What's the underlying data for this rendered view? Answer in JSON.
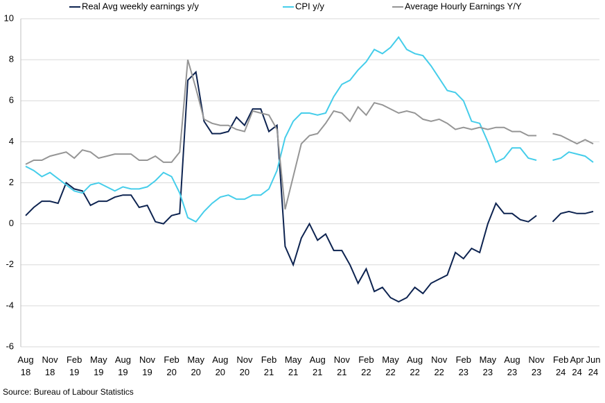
{
  "chart_data": {
    "type": "line",
    "categories": [
      "Aug 18",
      null,
      null,
      "Nov 18",
      null,
      null,
      "Feb 19",
      null,
      null,
      "May 19",
      null,
      null,
      "Aug 19",
      null,
      null,
      "Nov 19",
      null,
      null,
      "Feb 20",
      null,
      null,
      "May 20",
      null,
      null,
      "Aug 20",
      null,
      null,
      "Nov 20",
      null,
      null,
      "Feb 21",
      null,
      null,
      "May 21",
      null,
      null,
      "Aug 21",
      null,
      null,
      "Nov 21",
      null,
      null,
      "Feb 22",
      null,
      null,
      "May 22",
      null,
      null,
      "Aug 22",
      null,
      null,
      "Nov 22",
      null,
      null,
      "Feb 23",
      null,
      null,
      "May 23",
      null,
      null,
      "Aug 23",
      null,
      null,
      "Nov 23",
      null,
      null,
      "Feb 24",
      null,
      "Apr 24",
      null,
      "Jun 24"
    ],
    "series": [
      {
        "name": "Real Avg weekly earnings y/y",
        "color": "#0d2350",
        "values": [
          0.4,
          0.8,
          1.1,
          1.1,
          1.0,
          2.0,
          1.7,
          1.6,
          0.9,
          1.1,
          1.1,
          1.3,
          1.4,
          1.4,
          0.8,
          0.9,
          0.1,
          0.0,
          0.4,
          0.5,
          7.0,
          7.4,
          5.0,
          4.4,
          4.4,
          4.5,
          5.2,
          4.8,
          5.6,
          5.6,
          4.5,
          4.8,
          -1.1,
          -2.0,
          -0.7,
          0.0,
          -0.8,
          -0.5,
          -1.3,
          -1.3,
          -2.0,
          -2.9,
          -2.2,
          -3.3,
          -3.1,
          -3.6,
          -3.8,
          -3.6,
          -3.1,
          -3.4,
          -2.9,
          -2.7,
          -2.5,
          -1.4,
          -1.7,
          -1.2,
          -1.4,
          0.0,
          1.0,
          0.5,
          0.5,
          0.2,
          0.1,
          0.4,
          null,
          0.1,
          0.5,
          0.6,
          0.5,
          0.5,
          0.6
        ]
      },
      {
        "name": "CPI y/y",
        "color": "#45cdea",
        "values": [
          2.8,
          2.6,
          2.3,
          2.5,
          2.2,
          1.9,
          1.6,
          1.5,
          1.9,
          2.0,
          1.8,
          1.6,
          1.8,
          1.7,
          1.7,
          1.8,
          2.1,
          2.5,
          2.3,
          1.5,
          0.3,
          0.1,
          0.6,
          1.0,
          1.3,
          1.4,
          1.2,
          1.2,
          1.4,
          1.4,
          1.7,
          2.6,
          4.2,
          5.0,
          5.4,
          5.4,
          5.3,
          5.4,
          6.2,
          6.8,
          7.0,
          7.5,
          7.9,
          8.5,
          8.3,
          8.6,
          9.1,
          8.5,
          8.3,
          8.2,
          7.7,
          7.1,
          6.5,
          6.4,
          6.0,
          5.0,
          4.9,
          4.0,
          3.0,
          3.2,
          3.7,
          3.7,
          3.2,
          3.1,
          null,
          3.1,
          3.2,
          3.5,
          3.4,
          3.3,
          3.0
        ]
      },
      {
        "name": "Average Hourly Earnings Y/Y",
        "color": "#959595",
        "values": [
          2.9,
          3.1,
          3.1,
          3.3,
          3.4,
          3.5,
          3.2,
          3.6,
          3.5,
          3.2,
          3.3,
          3.4,
          3.4,
          3.4,
          3.1,
          3.1,
          3.3,
          3.0,
          3.0,
          3.5,
          8.0,
          6.6,
          5.1,
          4.9,
          4.8,
          4.8,
          4.6,
          4.5,
          5.5,
          5.4,
          5.3,
          4.6,
          0.7,
          2.3,
          3.9,
          4.3,
          4.4,
          4.9,
          5.5,
          5.4,
          5.0,
          5.7,
          5.3,
          5.9,
          5.8,
          5.6,
          5.4,
          5.5,
          5.4,
          5.1,
          5.0,
          5.1,
          4.9,
          4.6,
          4.7,
          4.6,
          4.7,
          4.6,
          4.7,
          4.7,
          4.5,
          4.5,
          4.3,
          4.3,
          null,
          4.4,
          4.3,
          4.1,
          3.9,
          4.1,
          3.9
        ]
      }
    ],
    "ylim": [
      -6,
      10
    ],
    "yticks": [
      -6,
      -4,
      -2,
      0,
      2,
      4,
      6,
      8,
      10
    ],
    "grid": true,
    "legend": "top",
    "source": "Source: Bureau of Labour Statistics"
  }
}
